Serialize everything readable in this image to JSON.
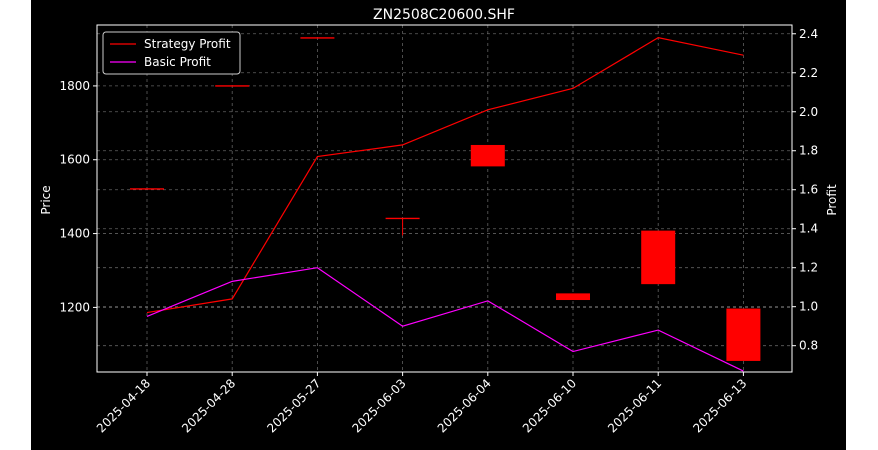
{
  "chart_data": {
    "type": "candlestick",
    "title": "ZN2508C20600.SHF",
    "ylabel": "Price",
    "y2label": "Profit",
    "grid": true,
    "legend_placement": "top-left",
    "categories": [
      "2025-04-18",
      "2025-04-28",
      "2025-05-27",
      "2025-06-03",
      "2025-06-04",
      "2025-06-10",
      "2025-06-11",
      "2025-06-13"
    ],
    "ylim": [
      1025,
      1965
    ],
    "y_ticks": [
      1200,
      1400,
      1600,
      1800
    ],
    "y2lim": [
      0.665,
      2.445
    ],
    "y2_ticks": [
      0.8,
      1.0,
      1.2,
      1.4,
      1.6,
      1.8,
      2.0,
      2.2,
      2.4
    ],
    "candles": [
      {
        "date": "2025-04-18",
        "open": 1521,
        "close": 1521,
        "high": 1521,
        "low": 1521
      },
      {
        "date": "2025-04-28",
        "open": 1800,
        "close": 1800,
        "high": 1800,
        "low": 1800
      },
      {
        "date": "2025-05-27",
        "open": 1930,
        "close": 1930,
        "high": 1930,
        "low": 1930
      },
      {
        "date": "2025-06-03",
        "open": 1441,
        "close": 1441,
        "high": 1441,
        "low": 1395
      },
      {
        "date": "2025-06-04",
        "open": 1582,
        "close": 1640,
        "high": 1640,
        "low": 1582
      },
      {
        "date": "2025-06-10",
        "open": 1220,
        "close": 1238,
        "high": 1238,
        "low": 1220
      },
      {
        "date": "2025-06-11",
        "open": 1263,
        "close": 1408,
        "high": 1408,
        "low": 1263
      },
      {
        "date": "2025-06-13",
        "open": 1055,
        "close": 1197,
        "high": 1197,
        "low": 1055
      }
    ],
    "series": [
      {
        "name": "Strategy Profit",
        "color": "#ff0000",
        "axis": "right",
        "values": [
          0.97,
          1.04,
          1.77,
          1.83,
          2.01,
          2.12,
          2.38,
          2.29
        ]
      },
      {
        "name": "Basic Profit",
        "color": "#ff00ff",
        "axis": "right",
        "values": [
          0.95,
          1.13,
          1.2,
          0.9,
          1.03,
          0.77,
          0.88,
          0.67
        ]
      }
    ]
  },
  "colors": {
    "background": "#000000",
    "frame": "#ffffff",
    "grid": "#808080",
    "candle_up": "#ff0000",
    "candle_down": "#008000",
    "page": "#ffffff"
  }
}
